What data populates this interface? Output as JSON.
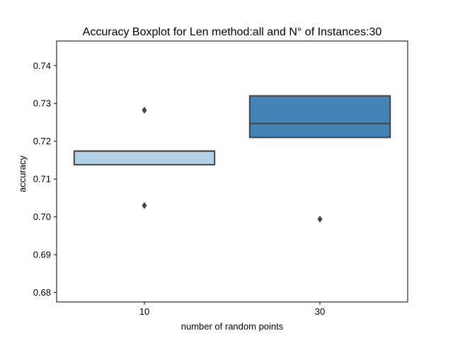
{
  "chart_data": {
    "type": "boxplot",
    "title": "Accuracy Boxplot for Len method:all and N° of Instances:30",
    "xlabel": "number of random points",
    "ylabel": "accuracy",
    "categories": [
      "10",
      "30"
    ],
    "yticks": [
      "0.68",
      "0.69",
      "0.70",
      "0.71",
      "0.72",
      "0.73",
      "0.74"
    ],
    "ylim": [
      0.6775,
      0.7465
    ],
    "grid": false,
    "colors": {
      "box_10": "#b3d1e6",
      "box_30": "#4584b6",
      "edge": "#444444"
    },
    "boxes": [
      {
        "category": "10",
        "q1": 0.7138,
        "median": 0.7174,
        "q3": 0.7174,
        "fliers": [
          0.7282,
          0.703
        ]
      },
      {
        "category": "30",
        "q1": 0.721,
        "median": 0.7247,
        "q3": 0.732,
        "fliers": [
          0.6994
        ]
      }
    ]
  }
}
